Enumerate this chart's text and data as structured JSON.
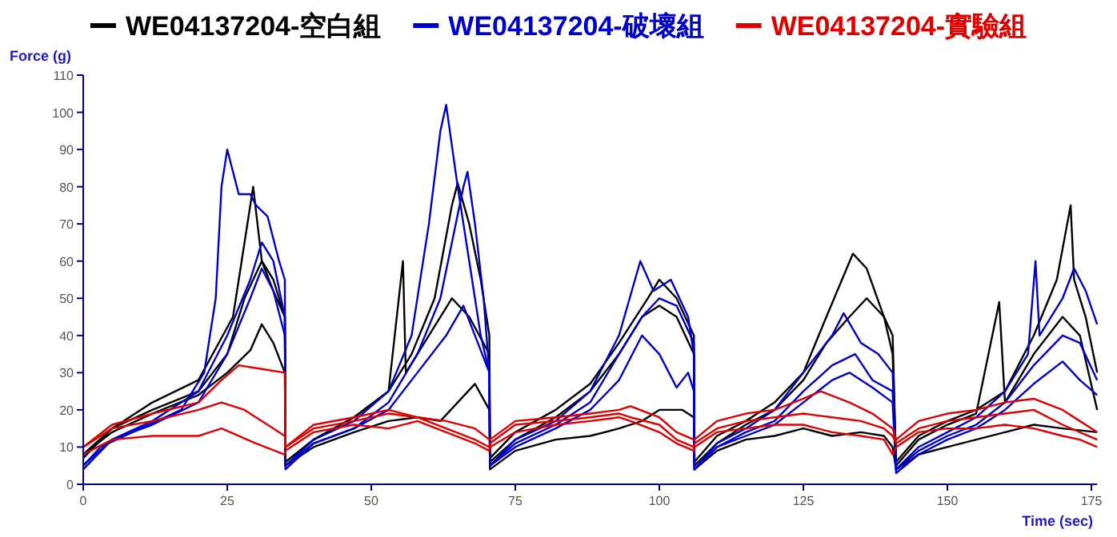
{
  "chart_data": {
    "type": "line",
    "xlabel": "Time (sec)",
    "ylabel": "Force (g)",
    "legend": "top",
    "grid": false,
    "marker": "none",
    "line_style": "solid",
    "xlim": [
      0,
      176
    ],
    "xticks": [
      0,
      25,
      50,
      75,
      100,
      125,
      150,
      175
    ],
    "ylim": [
      0,
      110
    ],
    "yticks": [
      0,
      10,
      20,
      30,
      40,
      50,
      60,
      70,
      80,
      90,
      100,
      110
    ],
    "series": [
      {
        "name": "WE04137204-空白組",
        "color": "#000000",
        "x": [
          0,
          5,
          12,
          20,
          26,
          28,
          29.5,
          31,
          33,
          35,
          35.1,
          40,
          47,
          53,
          57,
          61,
          64,
          65,
          67,
          69,
          70.5,
          70.6,
          75,
          82,
          88,
          93,
          98,
          100,
          103,
          106,
          106.1,
          110,
          115,
          120,
          125,
          129,
          133.6,
          136,
          139,
          140.5,
          141.1,
          145,
          150,
          155,
          160,
          165,
          169,
          171.4,
          172,
          174,
          176
        ],
        "values": [
          7,
          15,
          22,
          28,
          45,
          65,
          80,
          60,
          55,
          45,
          6,
          12,
          18,
          25,
          35,
          50,
          75,
          81,
          70,
          55,
          40,
          7,
          14,
          20,
          27,
          38,
          50,
          55,
          50,
          40,
          6,
          13,
          17,
          22,
          30,
          45,
          62,
          58,
          45,
          35,
          6,
          13,
          17,
          20,
          25,
          40,
          55,
          75,
          55,
          45,
          30
        ]
      },
      {
        "color": "#000000",
        "x": [
          0,
          5,
          12,
          20,
          25,
          28,
          31,
          33,
          35,
          35.1,
          40,
          47,
          53,
          55.5,
          56,
          60,
          64,
          67,
          70.5,
          70.6,
          75,
          82,
          88,
          93,
          97,
          100,
          103,
          106,
          106.1,
          110,
          115,
          120,
          125,
          129,
          133,
          136,
          139,
          140.5,
          141.1,
          145,
          150,
          155,
          159,
          160,
          165,
          170,
          173,
          176
        ],
        "values": [
          8,
          15,
          20,
          25,
          35,
          50,
          60,
          52,
          45,
          6,
          12,
          18,
          25,
          60,
          30,
          40,
          50,
          45,
          35,
          6,
          12,
          18,
          25,
          35,
          45,
          48,
          45,
          35,
          5,
          11,
          16,
          20,
          28,
          38,
          45,
          50,
          45,
          40,
          5,
          12,
          16,
          19,
          49,
          22,
          35,
          45,
          40,
          20
        ]
      },
      {
        "color": "#000000",
        "x": [
          0,
          5,
          12,
          20,
          25,
          29,
          31,
          33,
          35,
          35.1,
          40,
          47,
          53,
          58,
          62,
          65,
          68,
          70.5,
          70.6,
          75,
          82,
          88,
          93,
          97,
          100,
          104,
          106,
          106.1,
          110,
          115,
          120,
          125,
          130,
          135,
          139,
          140.5,
          141.1,
          145,
          150,
          155,
          160,
          165,
          170,
          176
        ],
        "values": [
          8,
          14,
          19,
          24,
          30,
          36,
          43,
          38,
          30,
          5,
          10,
          14,
          17,
          18,
          17,
          22,
          27,
          20,
          4,
          9,
          12,
          13,
          15,
          17,
          20,
          20,
          18,
          4,
          9,
          12,
          13,
          15,
          13,
          14,
          13,
          10,
          4,
          8,
          10,
          12,
          14,
          16,
          15,
          14
        ]
      },
      {
        "name": "WE04137204-破壞組",
        "color": "#0000cc",
        "x": [
          0,
          3,
          10,
          17,
          21,
          23,
          24,
          25,
          27,
          29,
          30,
          32,
          34,
          35,
          35.1,
          40,
          47,
          53,
          57,
          60,
          62,
          63,
          65,
          67,
          69,
          70.5,
          70.6,
          75,
          82,
          88,
          93,
          96.7,
          99,
          102,
          105,
          106,
          106.1,
          110,
          115,
          120,
          125,
          130,
          132,
          135,
          138,
          140.5,
          141.1,
          145,
          150,
          155,
          160,
          164,
          165.3,
          166,
          170,
          172,
          174,
          176
        ],
        "values": [
          5,
          10,
          15,
          20,
          30,
          50,
          80,
          90,
          78,
          78,
          75,
          72,
          60,
          55,
          5,
          12,
          17,
          25,
          40,
          70,
          95,
          102,
          80,
          60,
          40,
          30,
          5,
          12,
          17,
          25,
          40,
          60,
          52,
          55,
          45,
          35,
          4,
          11,
          15,
          20,
          30,
          40,
          46,
          38,
          35,
          30,
          4,
          10,
          14,
          18,
          25,
          35,
          60,
          40,
          50,
          58,
          52,
          43
        ]
      },
      {
        "color": "#0000cc",
        "x": [
          0,
          5,
          12,
          20,
          25,
          29,
          31,
          33,
          35,
          35.1,
          40,
          47,
          53,
          58,
          62,
          66,
          66.7,
          68,
          69.5,
          70.5,
          70.6,
          75,
          82,
          88,
          93,
          97,
          100,
          103,
          106,
          106.1,
          110,
          115,
          120,
          125,
          130,
          134,
          137,
          140.5,
          141.1,
          145,
          150,
          155,
          160,
          165,
          170,
          173,
          176
        ],
        "values": [
          5,
          12,
          17,
          25,
          40,
          55,
          65,
          60,
          45,
          5,
          11,
          15,
          22,
          35,
          50,
          80,
          84,
          70,
          50,
          30,
          5,
          11,
          16,
          22,
          35,
          45,
          50,
          48,
          38,
          4,
          10,
          14,
          17,
          25,
          32,
          35,
          28,
          25,
          4,
          9,
          13,
          16,
          22,
          32,
          40,
          38,
          28
        ]
      },
      {
        "color": "#0000cc",
        "x": [
          0,
          5,
          12,
          20,
          25,
          29,
          31,
          33,
          35,
          35.1,
          40,
          47,
          53,
          58,
          63,
          66,
          68,
          70.5,
          70.6,
          75,
          82,
          88,
          93,
          97,
          100,
          103,
          105,
          106,
          106.1,
          110,
          115,
          120,
          125,
          130,
          133,
          137,
          140.5,
          141.1,
          145,
          150,
          155,
          160,
          165,
          170,
          173,
          176
        ],
        "values": [
          4,
          12,
          16,
          22,
          35,
          50,
          58,
          52,
          40,
          4,
          11,
          15,
          20,
          30,
          40,
          48,
          40,
          30,
          5,
          10,
          15,
          20,
          28,
          40,
          35,
          26,
          30,
          25,
          4,
          10,
          13,
          16,
          22,
          28,
          30,
          26,
          22,
          3,
          8,
          12,
          15,
          20,
          27,
          33,
          28,
          24
        ]
      },
      {
        "name": "WE04137204-實驗組",
        "color": "#e00000",
        "x": [
          0,
          5,
          12,
          20,
          24,
          27,
          31,
          35,
          35.1,
          40,
          47,
          53,
          58,
          63,
          68,
          70.5,
          70.6,
          75,
          82,
          88,
          93,
          95,
          100,
          103,
          106,
          106.1,
          110,
          115,
          120,
          125,
          128,
          133,
          137,
          140.5,
          141.1,
          145,
          150,
          155,
          160,
          165,
          170,
          173,
          176
        ],
        "values": [
          10,
          16,
          19,
          22,
          28,
          32,
          31,
          30,
          10,
          16,
          18,
          20,
          18,
          17,
          15,
          12,
          12,
          17,
          18,
          19,
          20,
          21,
          18,
          14,
          12,
          12,
          17,
          19,
          20,
          23,
          25,
          22,
          19,
          15,
          12,
          17,
          19,
          20,
          22,
          23,
          20,
          17,
          14
        ]
      },
      {
        "color": "#e00000",
        "x": [
          0,
          5,
          12,
          20,
          24,
          28,
          32,
          35,
          35.1,
          40,
          47,
          53,
          58,
          63,
          68,
          70.5,
          70.6,
          75,
          82,
          88,
          93,
          95,
          100,
          103,
          106,
          106.1,
          110,
          115,
          120,
          125,
          130,
          135,
          139,
          140.5,
          141.1,
          145,
          150,
          155,
          160,
          165,
          170,
          173,
          176
        ],
        "values": [
          10,
          15,
          17,
          20,
          22,
          20,
          16,
          13,
          10,
          15,
          17,
          19,
          18,
          15,
          12,
          10,
          11,
          16,
          17,
          18,
          19,
          18,
          16,
          12,
          10,
          11,
          15,
          17,
          18,
          19,
          18,
          17,
          15,
          13,
          11,
          15,
          17,
          18,
          19,
          20,
          16,
          14,
          12
        ]
      },
      {
        "color": "#e00000",
        "x": [
          0,
          5,
          12,
          20,
          24,
          30,
          35,
          35.1,
          40,
          47,
          53,
          58,
          63,
          68,
          70.5,
          70.6,
          75,
          82,
          88,
          93,
          95,
          100,
          103,
          106,
          106.1,
          110,
          115,
          120,
          125,
          130,
          135,
          139,
          140.5,
          141.1,
          145,
          150,
          155,
          160,
          165,
          170,
          173,
          176
        ],
        "values": [
          8,
          12,
          13,
          13,
          15,
          11,
          8,
          9,
          14,
          16,
          15,
          17,
          14,
          11,
          9,
          10,
          14,
          16,
          17,
          18,
          17,
          14,
          11,
          9,
          10,
          14,
          15,
          16,
          16,
          14,
          13,
          12,
          8,
          10,
          14,
          15,
          15,
          16,
          15,
          13,
          12,
          10
        ]
      }
    ]
  }
}
